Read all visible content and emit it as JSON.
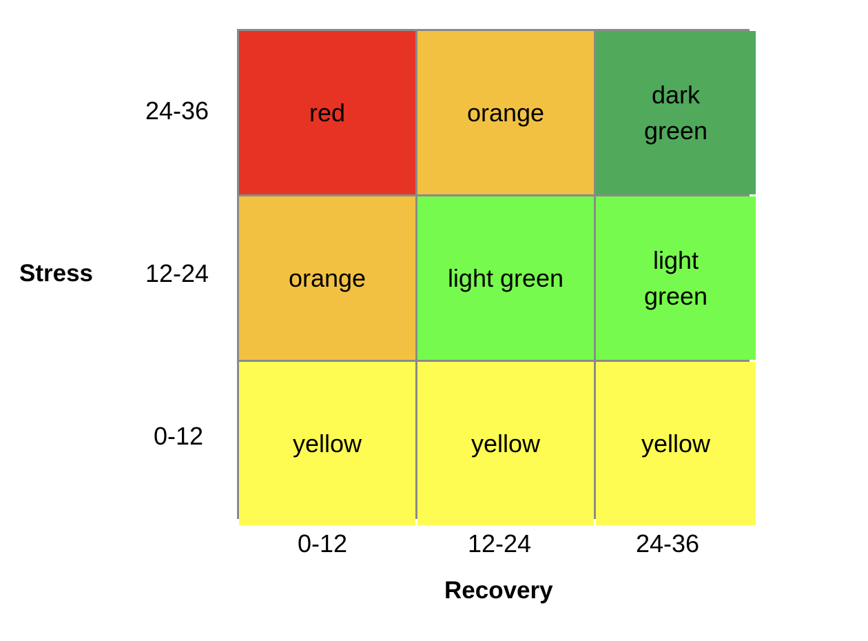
{
  "axes": {
    "y_title": "Stress",
    "x_title": "Recovery",
    "y_ticks": [
      "24-36",
      "12-24",
      "0-12"
    ],
    "x_ticks": [
      "0-12",
      "12-24",
      "24-36"
    ]
  },
  "grid": {
    "rows": [
      [
        {
          "label": "red",
          "color": "#e73323"
        },
        {
          "label": "orange",
          "color": "#f3c142"
        },
        {
          "label": "dark\ngreen",
          "color": "#51a95b"
        }
      ],
      [
        {
          "label": "orange",
          "color": "#f3c142"
        },
        {
          "label": "light green",
          "color": "#77fa4e"
        },
        {
          "label": "light\ngreen",
          "color": "#77fa4e"
        }
      ],
      [
        {
          "label": "yellow",
          "color": "#fefc53"
        },
        {
          "label": "yellow",
          "color": "#fefc53"
        },
        {
          "label": "yellow",
          "color": "#fefc53"
        }
      ]
    ]
  }
}
